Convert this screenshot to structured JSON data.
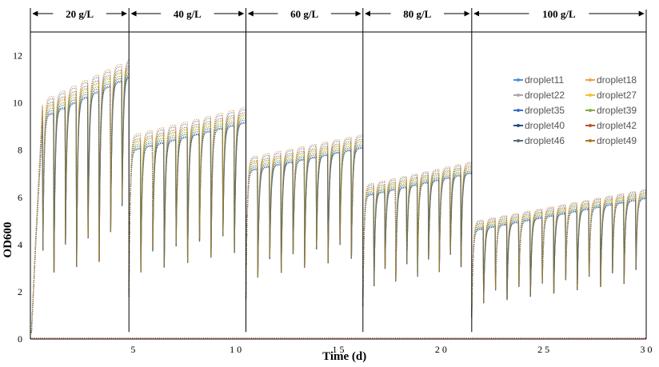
{
  "chart_data": {
    "type": "scatter",
    "xlabel": "Time (d)",
    "ylabel": "OD600",
    "xlim": [
      0,
      30
    ],
    "ylim": [
      0,
      13
    ],
    "x_ticks": [
      {
        "v": 5,
        "label": "5"
      },
      {
        "v": 10,
        "label": "1 0"
      },
      {
        "v": 15,
        "label": "1 5"
      },
      {
        "v": 20,
        "label": "2 0"
      },
      {
        "v": 25,
        "label": "2 5"
      },
      {
        "v": 30,
        "label": "3 0"
      }
    ],
    "y_ticks": [
      0,
      2,
      4,
      6,
      8,
      10,
      12
    ],
    "grid": false,
    "legend_position": "top-right",
    "phases": [
      {
        "label": "20 g/L",
        "start": 0,
        "end": 4.8
      },
      {
        "label": "40 g/L",
        "start": 4.8,
        "end": 10.5
      },
      {
        "label": "60 g/L",
        "start": 10.5,
        "end": 16.2
      },
      {
        "label": "80 g/L",
        "start": 16.2,
        "end": 21.5
      },
      {
        "label": "100 g/L",
        "start": 21.5,
        "end": 30
      }
    ],
    "phase_cycles": [
      {
        "start": 0.05,
        "period": 0.55,
        "count": 9,
        "peak_first": 9.6,
        "peak_last": 11.4,
        "trough": 2.6
      },
      {
        "start": 4.8,
        "period": 0.57,
        "count": 10,
        "peak_first": 8.3,
        "peak_last": 9.4,
        "trough": 1.8
      },
      {
        "start": 10.5,
        "period": 0.57,
        "count": 10,
        "peak_first": 7.4,
        "peak_last": 8.3,
        "trough": 1.7
      },
      {
        "start": 16.2,
        "period": 0.53,
        "count": 10,
        "peak_first": 6.3,
        "peak_last": 7.2,
        "trough": 1.4
      },
      {
        "start": 21.5,
        "period": 0.57,
        "count": 15,
        "peak_first": 4.8,
        "peak_last": 6.1,
        "trough": 0.9
      }
    ],
    "series": [
      {
        "name": "droplet11",
        "color": "#4a90d9",
        "offset": 0.35
      },
      {
        "name": "droplet18",
        "color": "#f0a050",
        "offset": 0.45
      },
      {
        "name": "droplet22",
        "color": "#a9a9a9",
        "offset": 0.1
      },
      {
        "name": "droplet27",
        "color": "#f2c230",
        "offset": 0.05
      },
      {
        "name": "droplet35",
        "color": "#3a6fc4",
        "offset": -0.15
      },
      {
        "name": "droplet39",
        "color": "#7fae4a",
        "offset": -0.05
      },
      {
        "name": "droplet40",
        "color": "#1f4e8c",
        "offset": -0.3
      },
      {
        "name": "droplet42",
        "color": "#c0502a",
        "offset": 0.0,
        "flat": true
      },
      {
        "name": "droplet46",
        "color": "#5a6a7a",
        "offset": -0.25
      },
      {
        "name": "droplet49",
        "color": "#a87a20",
        "offset": 0.2
      }
    ]
  }
}
